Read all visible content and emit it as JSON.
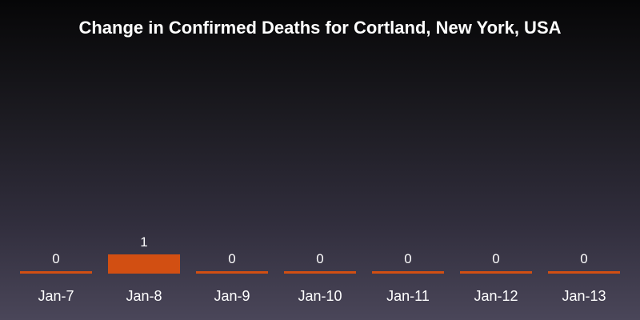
{
  "chart_data": {
    "type": "bar",
    "title": "Change in Confirmed Deaths for Cortland, New York, USA",
    "categories": [
      "Jan-7",
      "Jan-8",
      "Jan-9",
      "Jan-10",
      "Jan-11",
      "Jan-12",
      "Jan-13"
    ],
    "values": [
      0,
      1,
      0,
      0,
      0,
      0,
      0
    ],
    "data_labels": [
      "0",
      "1",
      "0",
      "0",
      "0",
      "0",
      "0"
    ],
    "xlabel": "",
    "ylabel": "",
    "ylim": [
      0,
      1
    ],
    "grid": false,
    "legend": "none",
    "colors": {
      "bar": "#d24f12",
      "text": "#ffffff",
      "title": "#ffffff"
    }
  }
}
